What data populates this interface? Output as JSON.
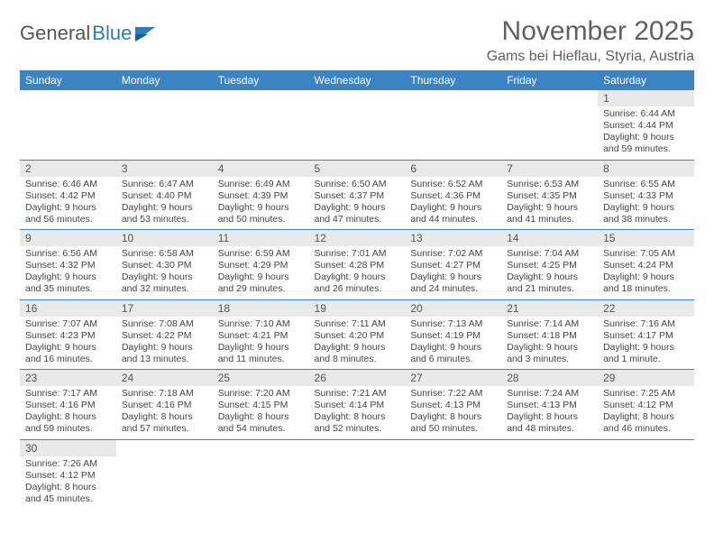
{
  "logo": {
    "text1": "General",
    "text2": "Blue"
  },
  "title": "November 2025",
  "location": "Gams bei Hieflau, Styria, Austria",
  "colors": {
    "header_bg": "#3b84c4",
    "header_fg": "#ffffff",
    "daynum_bg": "#e9e9e9",
    "row_border": "#3b84c4",
    "logo_blue": "#2a7bbf",
    "title_color": "#606060"
  },
  "weekdays": [
    "Sunday",
    "Monday",
    "Tuesday",
    "Wednesday",
    "Thursday",
    "Friday",
    "Saturday"
  ],
  "weeks": [
    [
      null,
      null,
      null,
      null,
      null,
      null,
      {
        "n": "1",
        "sunrise": "Sunrise: 6:44 AM",
        "sunset": "Sunset: 4:44 PM",
        "daylight": "Daylight: 9 hours and 59 minutes."
      }
    ],
    [
      {
        "n": "2",
        "sunrise": "Sunrise: 6:46 AM",
        "sunset": "Sunset: 4:42 PM",
        "daylight": "Daylight: 9 hours and 56 minutes."
      },
      {
        "n": "3",
        "sunrise": "Sunrise: 6:47 AM",
        "sunset": "Sunset: 4:40 PM",
        "daylight": "Daylight: 9 hours and 53 minutes."
      },
      {
        "n": "4",
        "sunrise": "Sunrise: 6:49 AM",
        "sunset": "Sunset: 4:39 PM",
        "daylight": "Daylight: 9 hours and 50 minutes."
      },
      {
        "n": "5",
        "sunrise": "Sunrise: 6:50 AM",
        "sunset": "Sunset: 4:37 PM",
        "daylight": "Daylight: 9 hours and 47 minutes."
      },
      {
        "n": "6",
        "sunrise": "Sunrise: 6:52 AM",
        "sunset": "Sunset: 4:36 PM",
        "daylight": "Daylight: 9 hours and 44 minutes."
      },
      {
        "n": "7",
        "sunrise": "Sunrise: 6:53 AM",
        "sunset": "Sunset: 4:35 PM",
        "daylight": "Daylight: 9 hours and 41 minutes."
      },
      {
        "n": "8",
        "sunrise": "Sunrise: 6:55 AM",
        "sunset": "Sunset: 4:33 PM",
        "daylight": "Daylight: 9 hours and 38 minutes."
      }
    ],
    [
      {
        "n": "9",
        "sunrise": "Sunrise: 6:56 AM",
        "sunset": "Sunset: 4:32 PM",
        "daylight": "Daylight: 9 hours and 35 minutes."
      },
      {
        "n": "10",
        "sunrise": "Sunrise: 6:58 AM",
        "sunset": "Sunset: 4:30 PM",
        "daylight": "Daylight: 9 hours and 32 minutes."
      },
      {
        "n": "11",
        "sunrise": "Sunrise: 6:59 AM",
        "sunset": "Sunset: 4:29 PM",
        "daylight": "Daylight: 9 hours and 29 minutes."
      },
      {
        "n": "12",
        "sunrise": "Sunrise: 7:01 AM",
        "sunset": "Sunset: 4:28 PM",
        "daylight": "Daylight: 9 hours and 26 minutes."
      },
      {
        "n": "13",
        "sunrise": "Sunrise: 7:02 AM",
        "sunset": "Sunset: 4:27 PM",
        "daylight": "Daylight: 9 hours and 24 minutes."
      },
      {
        "n": "14",
        "sunrise": "Sunrise: 7:04 AM",
        "sunset": "Sunset: 4:25 PM",
        "daylight": "Daylight: 9 hours and 21 minutes."
      },
      {
        "n": "15",
        "sunrise": "Sunrise: 7:05 AM",
        "sunset": "Sunset: 4:24 PM",
        "daylight": "Daylight: 9 hours and 18 minutes."
      }
    ],
    [
      {
        "n": "16",
        "sunrise": "Sunrise: 7:07 AM",
        "sunset": "Sunset: 4:23 PM",
        "daylight": "Daylight: 9 hours and 16 minutes."
      },
      {
        "n": "17",
        "sunrise": "Sunrise: 7:08 AM",
        "sunset": "Sunset: 4:22 PM",
        "daylight": "Daylight: 9 hours and 13 minutes."
      },
      {
        "n": "18",
        "sunrise": "Sunrise: 7:10 AM",
        "sunset": "Sunset: 4:21 PM",
        "daylight": "Daylight: 9 hours and 11 minutes."
      },
      {
        "n": "19",
        "sunrise": "Sunrise: 7:11 AM",
        "sunset": "Sunset: 4:20 PM",
        "daylight": "Daylight: 9 hours and 8 minutes."
      },
      {
        "n": "20",
        "sunrise": "Sunrise: 7:13 AM",
        "sunset": "Sunset: 4:19 PM",
        "daylight": "Daylight: 9 hours and 6 minutes."
      },
      {
        "n": "21",
        "sunrise": "Sunrise: 7:14 AM",
        "sunset": "Sunset: 4:18 PM",
        "daylight": "Daylight: 9 hours and 3 minutes."
      },
      {
        "n": "22",
        "sunrise": "Sunrise: 7:16 AM",
        "sunset": "Sunset: 4:17 PM",
        "daylight": "Daylight: 9 hours and 1 minute."
      }
    ],
    [
      {
        "n": "23",
        "sunrise": "Sunrise: 7:17 AM",
        "sunset": "Sunset: 4:16 PM",
        "daylight": "Daylight: 8 hours and 59 minutes."
      },
      {
        "n": "24",
        "sunrise": "Sunrise: 7:18 AM",
        "sunset": "Sunset: 4:16 PM",
        "daylight": "Daylight: 8 hours and 57 minutes."
      },
      {
        "n": "25",
        "sunrise": "Sunrise: 7:20 AM",
        "sunset": "Sunset: 4:15 PM",
        "daylight": "Daylight: 8 hours and 54 minutes."
      },
      {
        "n": "26",
        "sunrise": "Sunrise: 7:21 AM",
        "sunset": "Sunset: 4:14 PM",
        "daylight": "Daylight: 8 hours and 52 minutes."
      },
      {
        "n": "27",
        "sunrise": "Sunrise: 7:22 AM",
        "sunset": "Sunset: 4:13 PM",
        "daylight": "Daylight: 8 hours and 50 minutes."
      },
      {
        "n": "28",
        "sunrise": "Sunrise: 7:24 AM",
        "sunset": "Sunset: 4:13 PM",
        "daylight": "Daylight: 8 hours and 48 minutes."
      },
      {
        "n": "29",
        "sunrise": "Sunrise: 7:25 AM",
        "sunset": "Sunset: 4:12 PM",
        "daylight": "Daylight: 8 hours and 46 minutes."
      }
    ],
    [
      {
        "n": "30",
        "sunrise": "Sunrise: 7:26 AM",
        "sunset": "Sunset: 4:12 PM",
        "daylight": "Daylight: 8 hours and 45 minutes."
      },
      null,
      null,
      null,
      null,
      null,
      null
    ]
  ]
}
